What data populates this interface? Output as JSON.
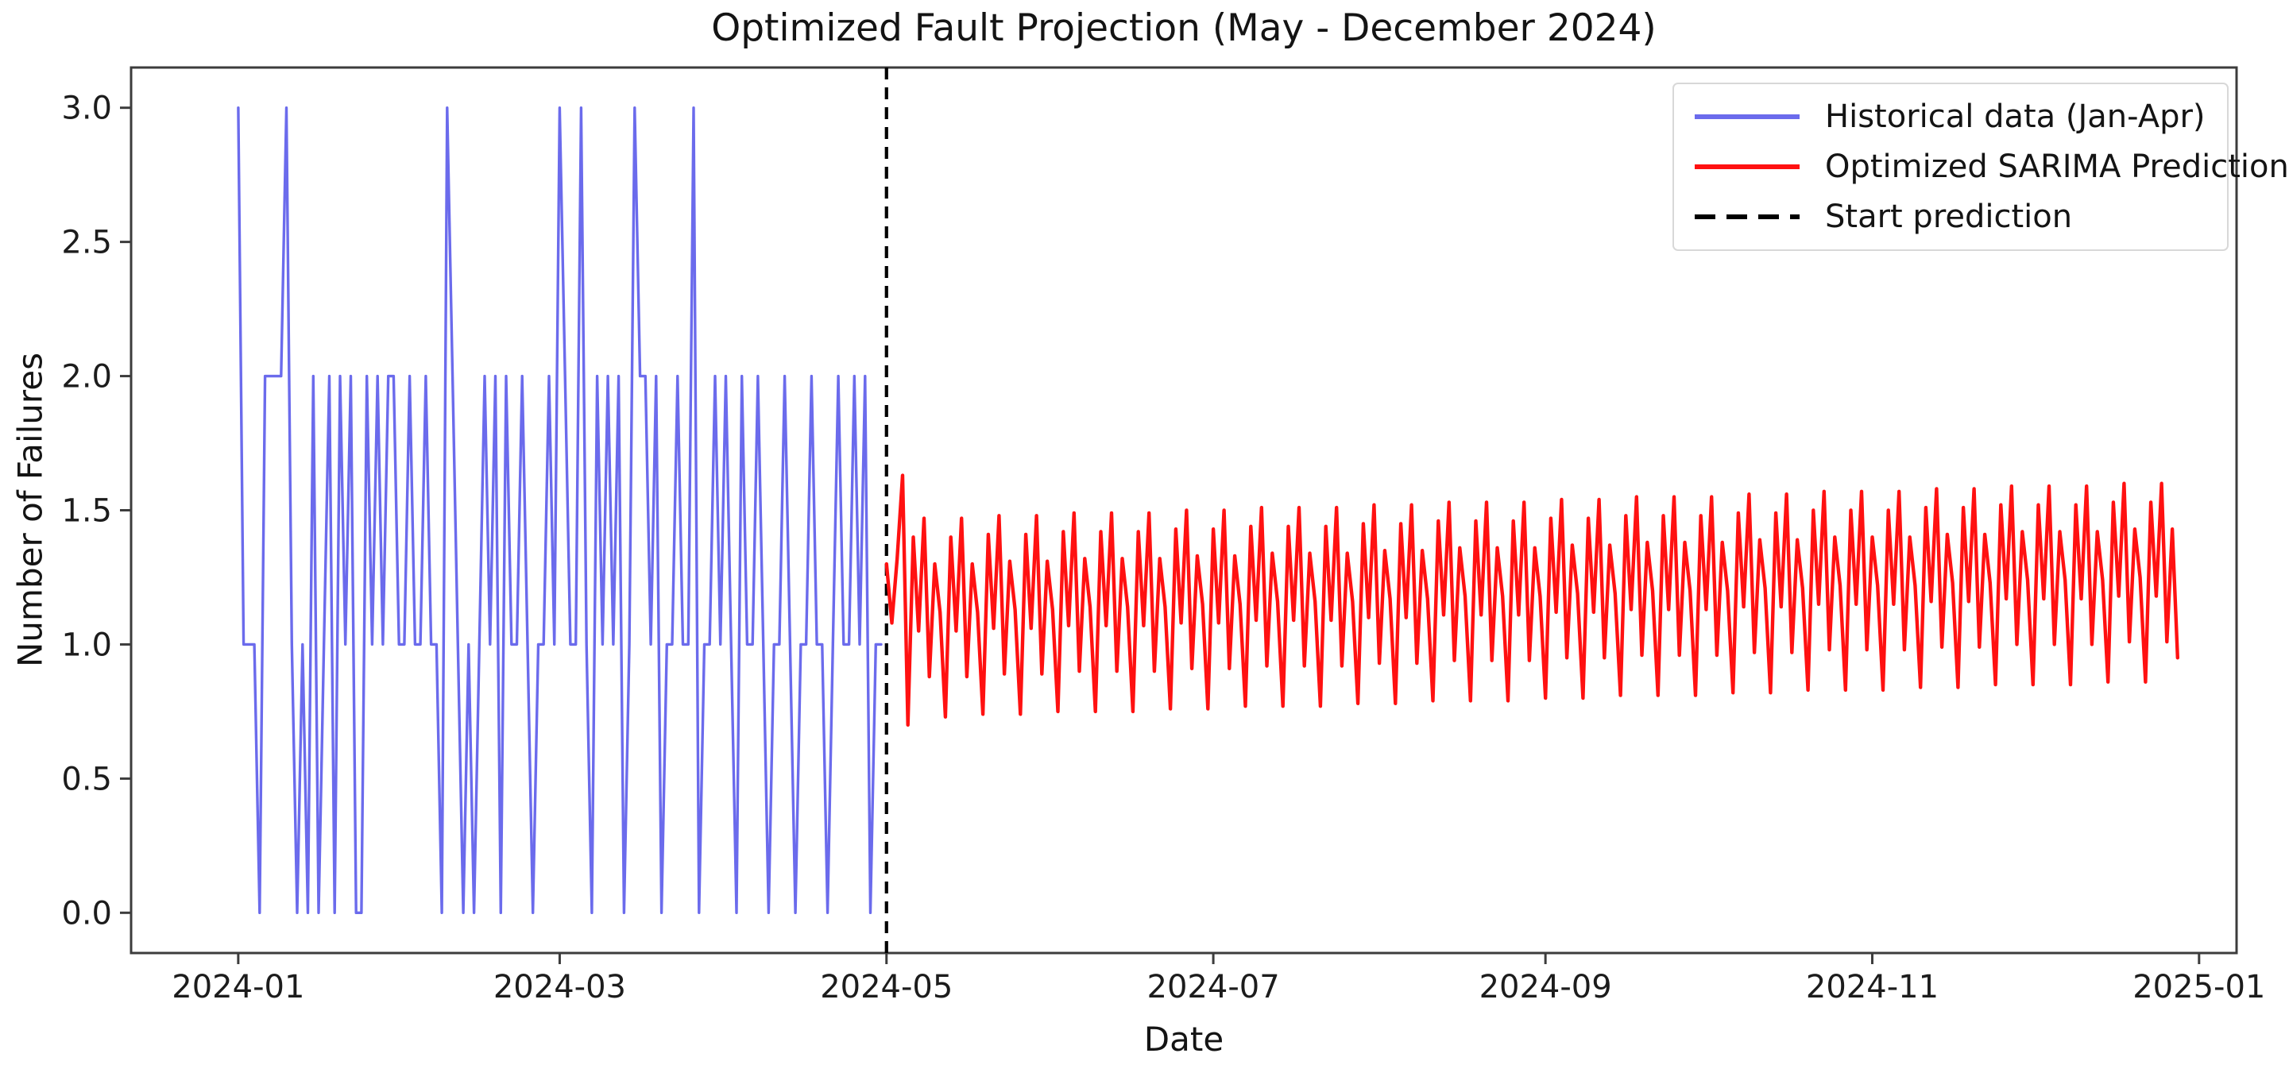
{
  "figure": {
    "title": "Optimized Fault Projection (May - December 2024)"
  },
  "chart_data": {
    "type": "line",
    "title": "Optimized Fault Projection (May - December 2024)",
    "xlabel": "Date",
    "ylabel": "Number of Failures",
    "grid": false,
    "legend_position": "upper right",
    "x_axis": {
      "unit": "days since 2024-01-01",
      "xlim_days": [
        -20,
        373
      ],
      "tick_days": [
        0,
        60,
        121,
        182,
        244,
        305,
        366
      ],
      "tick_labels": [
        "2024-01",
        "2024-03",
        "2024-05",
        "2024-07",
        "2024-09",
        "2024-11",
        "2025-01"
      ]
    },
    "y_axis": {
      "ylim": [
        -0.15,
        3.15
      ],
      "tick_values": [
        0.0,
        0.5,
        1.0,
        1.5,
        2.0,
        2.5,
        3.0
      ],
      "tick_labels": [
        "0.0",
        "0.5",
        "1.0",
        "1.5",
        "2.0",
        "2.5",
        "3.0"
      ]
    },
    "legend": [
      {
        "label": "Historical data (Jan-Apr)",
        "color": "#6b6bec",
        "dash": false
      },
      {
        "label": "Optimized SARIMA Prediction",
        "color": "#ff1111",
        "dash": false
      },
      {
        "label": "Start prediction",
        "color": "#000000",
        "dash": true
      }
    ],
    "vline": {
      "name": "Start prediction",
      "day": 121,
      "color": "#000000",
      "dash": true
    },
    "series": [
      {
        "name": "Historical data (Jan-Apr)",
        "color": "#6b6bec",
        "width": 3.4,
        "start_day": 0,
        "start_date": "2024-01-01",
        "end_date": "2024-04-30",
        "values": [
          3,
          1,
          1,
          1,
          0,
          2,
          2,
          2,
          2,
          3,
          1,
          0,
          1,
          0,
          2,
          0,
          1,
          2,
          0,
          2,
          1,
          2,
          0,
          0,
          2,
          1,
          2,
          1,
          2,
          2,
          1,
          1,
          2,
          1,
          1,
          2,
          1,
          1,
          0,
          3,
          2,
          1,
          0,
          1,
          0,
          1,
          2,
          1,
          2,
          0,
          2,
          1,
          1,
          2,
          1,
          0,
          1,
          1,
          2,
          1,
          3,
          2,
          1,
          1,
          3,
          1,
          0,
          2,
          1,
          2,
          1,
          2,
          0,
          1,
          3,
          2,
          2,
          1,
          2,
          0,
          1,
          1,
          2,
          1,
          1,
          3,
          0,
          1,
          1,
          2,
          1,
          2,
          1,
          0,
          2,
          1,
          1,
          2,
          1,
          0,
          1,
          1,
          2,
          1,
          0,
          1,
          1,
          2,
          1,
          1,
          0,
          1,
          2,
          1,
          1,
          2,
          1,
          2,
          0,
          1,
          1
        ]
      },
      {
        "name": "Optimized SARIMA Prediction",
        "color": "#ff1111",
        "width": 4.4,
        "start_day": 121,
        "start_date": "2024-05-01",
        "end_date": "2024-12-28",
        "values": [
          1.3,
          1.08,
          1.32,
          1.63,
          0.7,
          1.4,
          1.05,
          1.47,
          0.88,
          1.3,
          1.12,
          0.73,
          1.4,
          1.05,
          1.47,
          0.88,
          1.3,
          1.12,
          0.74,
          1.41,
          1.06,
          1.48,
          0.89,
          1.31,
          1.13,
          0.74,
          1.41,
          1.06,
          1.48,
          0.89,
          1.31,
          1.13,
          0.75,
          1.42,
          1.07,
          1.49,
          0.9,
          1.32,
          1.14,
          0.75,
          1.42,
          1.07,
          1.49,
          0.9,
          1.32,
          1.14,
          0.75,
          1.42,
          1.07,
          1.49,
          0.9,
          1.32,
          1.14,
          0.76,
          1.43,
          1.08,
          1.5,
          0.91,
          1.33,
          1.15,
          0.76,
          1.43,
          1.08,
          1.5,
          0.91,
          1.33,
          1.15,
          0.77,
          1.44,
          1.09,
          1.51,
          0.92,
          1.34,
          1.16,
          0.77,
          1.44,
          1.09,
          1.51,
          0.92,
          1.34,
          1.16,
          0.77,
          1.44,
          1.09,
          1.51,
          0.92,
          1.34,
          1.16,
          0.78,
          1.45,
          1.1,
          1.52,
          0.93,
          1.35,
          1.17,
          0.78,
          1.45,
          1.1,
          1.52,
          0.93,
          1.35,
          1.17,
          0.79,
          1.46,
          1.11,
          1.53,
          0.94,
          1.36,
          1.18,
          0.79,
          1.46,
          1.11,
          1.53,
          0.94,
          1.36,
          1.18,
          0.79,
          1.46,
          1.11,
          1.53,
          0.94,
          1.36,
          1.18,
          0.8,
          1.47,
          1.12,
          1.54,
          0.95,
          1.37,
          1.19,
          0.8,
          1.47,
          1.12,
          1.54,
          0.95,
          1.37,
          1.19,
          0.81,
          1.48,
          1.13,
          1.55,
          0.96,
          1.38,
          1.2,
          0.81,
          1.48,
          1.13,
          1.55,
          0.96,
          1.38,
          1.2,
          0.81,
          1.48,
          1.13,
          1.55,
          0.96,
          1.38,
          1.2,
          0.82,
          1.49,
          1.14,
          1.56,
          0.97,
          1.39,
          1.21,
          0.82,
          1.49,
          1.14,
          1.56,
          0.97,
          1.39,
          1.21,
          0.83,
          1.5,
          1.15,
          1.57,
          0.98,
          1.4,
          1.22,
          0.83,
          1.5,
          1.15,
          1.57,
          0.98,
          1.4,
          1.22,
          0.83,
          1.5,
          1.15,
          1.57,
          0.98,
          1.4,
          1.22,
          0.84,
          1.51,
          1.16,
          1.58,
          0.99,
          1.41,
          1.23,
          0.84,
          1.51,
          1.16,
          1.58,
          0.99,
          1.41,
          1.23,
          0.85,
          1.52,
          1.17,
          1.59,
          1.0,
          1.42,
          1.24,
          0.85,
          1.52,
          1.17,
          1.59,
          1.0,
          1.42,
          1.24,
          0.85,
          1.52,
          1.17,
          1.59,
          1.0,
          1.42,
          1.24,
          0.86,
          1.53,
          1.18,
          1.6,
          1.01,
          1.43,
          1.25,
          0.86,
          1.53,
          1.18,
          1.6,
          1.01,
          1.43,
          0.95
        ]
      }
    ]
  }
}
